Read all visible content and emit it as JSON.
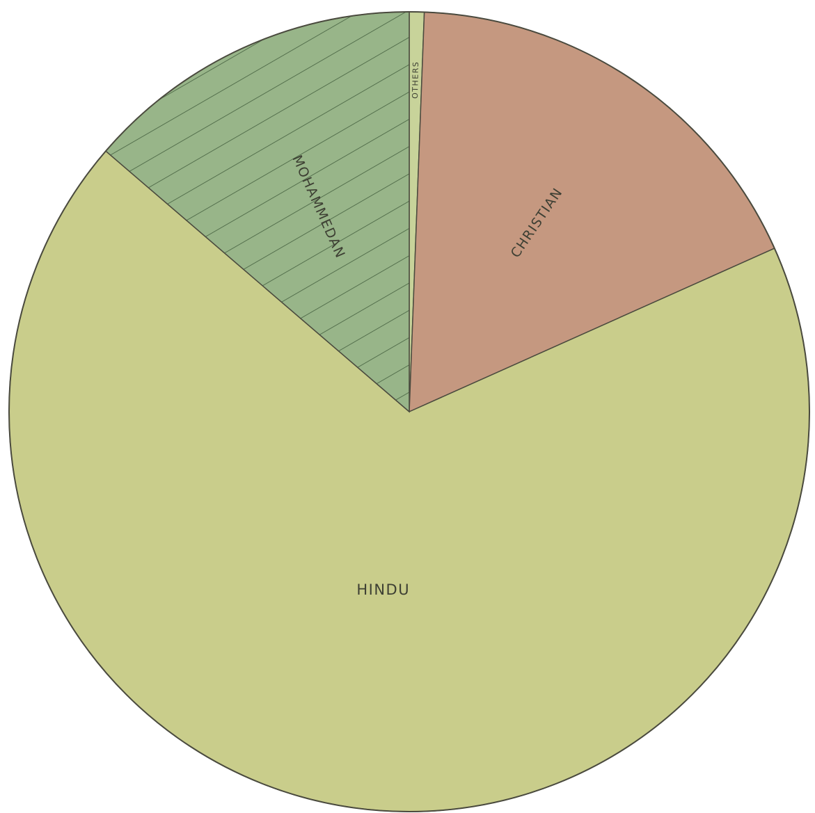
{
  "chart_data": {
    "type": "pie",
    "title": "",
    "start_angle_deg": 0,
    "direction": "clockwise",
    "slices": [
      {
        "label": "OTHERS",
        "value": 0.6,
        "color": "#c8d39a",
        "pattern": "none"
      },
      {
        "label": "CHRISTIAN",
        "value": 17.7,
        "color": "#c59880",
        "pattern": "none"
      },
      {
        "label": "HINDU",
        "value": 68.0,
        "color": "#c9cd8b",
        "pattern": "none"
      },
      {
        "label": "MOHAMMEDAN",
        "value": 13.7,
        "color": "#98b589",
        "pattern": "hatch"
      }
    ],
    "legend": "none"
  }
}
